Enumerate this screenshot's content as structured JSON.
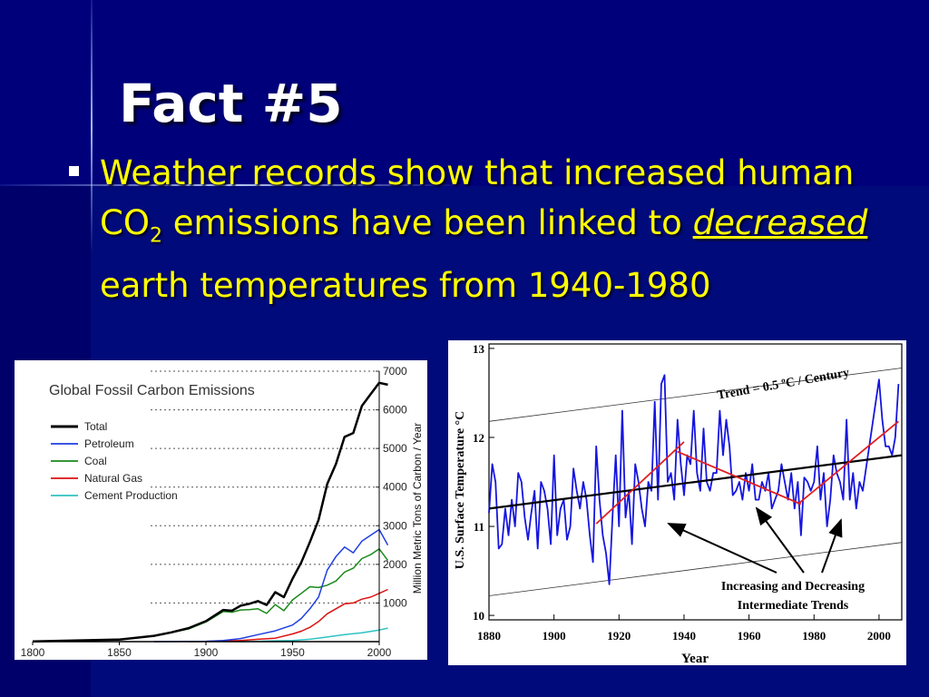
{
  "slide": {
    "title": "Fact #5",
    "bullet": {
      "part1": "Weather records show that increased human CO",
      "subscript": "2",
      "part2": " emissions have been linked to ",
      "emphasis": "decreased",
      "part3": " earth temperatures from 1940-1980"
    }
  },
  "colors": {
    "background": "#000a7a",
    "title": "#ffffff",
    "bullet_text": "#ffff00"
  },
  "chart_data": [
    {
      "type": "line",
      "title": "Global Fossil Carbon Emissions",
      "ylabel": "Million Metric Tons of Carbon / Year",
      "xlabel": "",
      "xlim": [
        1800,
        2000
      ],
      "ylim": [
        0,
        7000
      ],
      "x_ticks": [
        "1800",
        "1850",
        "1900",
        "1950",
        "2000"
      ],
      "y_ticks": [
        "1000",
        "2000",
        "3000",
        "4000",
        "5000",
        "6000",
        "7000"
      ],
      "grid": "horizontal dotted",
      "legend_position": "top-left",
      "series": [
        {
          "name": "Total",
          "color": "#000000",
          "x": [
            1800,
            1850,
            1870,
            1880,
            1890,
            1900,
            1910,
            1915,
            1920,
            1925,
            1930,
            1935,
            1940,
            1945,
            1950,
            1955,
            1960,
            1965,
            1970,
            1975,
            1980,
            1985,
            1990,
            1995,
            2000,
            2005
          ],
          "y": [
            5,
            55,
            150,
            240,
            350,
            530,
            820,
            800,
            930,
            980,
            1050,
            950,
            1280,
            1150,
            1630,
            2050,
            2580,
            3150,
            4080,
            4600,
            5300,
            5400,
            6100,
            6400,
            6700,
            6650
          ]
        },
        {
          "name": "Petroleum",
          "color": "#1f3fe0",
          "x": [
            1870,
            1900,
            1910,
            1920,
            1930,
            1940,
            1950,
            1955,
            1960,
            1965,
            1970,
            1975,
            1980,
            1985,
            1990,
            1995,
            2000,
            2005
          ],
          "y": [
            0,
            10,
            30,
            80,
            180,
            280,
            430,
            600,
            850,
            1150,
            1850,
            2200,
            2450,
            2300,
            2600,
            2750,
            2900,
            2500
          ]
        },
        {
          "name": "Coal",
          "color": "#1a8a1a",
          "x": [
            1800,
            1850,
            1870,
            1890,
            1900,
            1910,
            1915,
            1920,
            1925,
            1930,
            1935,
            1940,
            1945,
            1950,
            1955,
            1960,
            1965,
            1970,
            1975,
            1980,
            1985,
            1990,
            1995,
            2000,
            2005
          ],
          "y": [
            5,
            55,
            145,
            330,
            510,
            780,
            760,
            820,
            830,
            850,
            730,
            960,
            800,
            1080,
            1250,
            1420,
            1400,
            1460,
            1570,
            1800,
            1900,
            2150,
            2250,
            2400,
            2100
          ]
        },
        {
          "name": "Natural Gas",
          "color": "#dd1111",
          "x": [
            1890,
            1900,
            1920,
            1930,
            1940,
            1950,
            1955,
            1960,
            1965,
            1970,
            1975,
            1980,
            1985,
            1990,
            1995,
            2000,
            2005
          ],
          "y": [
            0,
            5,
            30,
            60,
            90,
            200,
            270,
            370,
            520,
            720,
            850,
            980,
            1000,
            1100,
            1150,
            1250,
            1350
          ]
        },
        {
          "name": "Cement Production",
          "color": "#2fc2c2",
          "x": [
            1920,
            1930,
            1940,
            1950,
            1960,
            1970,
            1980,
            1990,
            2000,
            2005
          ],
          "y": [
            0,
            10,
            20,
            30,
            60,
            120,
            180,
            230,
            300,
            350
          ]
        }
      ]
    },
    {
      "type": "line",
      "title": "",
      "xlabel": "Year",
      "ylabel": "U.S. Surface Temperature °C",
      "xlim": [
        1880,
        2007
      ],
      "ylim": [
        9.95,
        13.05
      ],
      "x_ticks": [
        "1880",
        "1900",
        "1920",
        "1940",
        "1960",
        "1980",
        "2000"
      ],
      "y_ticks": [
        "10",
        "11",
        "12",
        "13"
      ],
      "annotations": {
        "trend_label": "Trend = 0.5 ºC / Century",
        "note_line1": "Increasing and Decreasing",
        "note_line2": "Intermediate Trends"
      },
      "series": [
        {
          "name": "",
          "color": "#1515e0",
          "x": [
            1880,
            1881,
            1882,
            1883,
            1884,
            1885,
            1886,
            1887,
            1888,
            1889,
            1890,
            1891,
            1892,
            1893,
            1894,
            1895,
            1896,
            1897,
            1898,
            1899,
            1900,
            1901,
            1902,
            1903,
            1904,
            1905,
            1906,
            1907,
            1908,
            1909,
            1910,
            1911,
            1912,
            1913,
            1914,
            1915,
            1916,
            1917,
            1918,
            1919,
            1920,
            1921,
            1922,
            1923,
            1924,
            1925,
            1926,
            1927,
            1928,
            1929,
            1930,
            1931,
            1932,
            1933,
            1934,
            1935,
            1936,
            1937,
            1938,
            1939,
            1940,
            1941,
            1942,
            1943,
            1944,
            1945,
            1946,
            1947,
            1948,
            1949,
            1950,
            1951,
            1952,
            1953,
            1954,
            1955,
            1956,
            1957,
            1958,
            1959,
            1960,
            1961,
            1962,
            1963,
            1964,
            1965,
            1966,
            1967,
            1968,
            1969,
            1970,
            1971,
            1972,
            1973,
            1974,
            1975,
            1976,
            1977,
            1978,
            1979,
            1980,
            1981,
            1982,
            1983,
            1984,
            1985,
            1986,
            1987,
            1988,
            1989,
            1990,
            1991,
            1992,
            1993,
            1994,
            1995,
            2000,
            2001,
            2002,
            2003,
            2004,
            2005,
            2006
          ],
          "y": [
            11.15,
            11.7,
            11.5,
            10.75,
            10.8,
            11.2,
            10.9,
            11.3,
            11.0,
            11.6,
            11.5,
            11.1,
            10.85,
            11.15,
            11.4,
            10.75,
            11.5,
            11.4,
            11.2,
            10.8,
            11.8,
            10.9,
            11.2,
            11.3,
            10.85,
            11.0,
            11.65,
            11.4,
            11.2,
            11.5,
            11.3,
            10.9,
            10.6,
            11.9,
            11.3,
            10.9,
            10.7,
            10.35,
            11.1,
            11.8,
            11.0,
            12.3,
            11.1,
            11.4,
            10.8,
            11.7,
            11.5,
            11.2,
            11.0,
            11.5,
            11.4,
            12.4,
            11.3,
            12.6,
            12.7,
            11.5,
            11.6,
            11.3,
            12.2,
            11.7,
            11.35,
            11.8,
            11.7,
            12.3,
            11.6,
            11.4,
            12.1,
            11.5,
            11.4,
            11.6,
            11.6,
            12.3,
            11.8,
            12.2,
            11.9,
            11.35,
            11.4,
            11.5,
            11.3,
            11.6,
            11.4,
            11.7,
            11.3,
            11.3,
            11.5,
            11.4,
            11.6,
            11.2,
            11.3,
            11.4,
            11.7,
            11.5,
            11.3,
            11.6,
            11.2,
            11.5,
            10.9,
            11.55,
            11.5,
            11.4,
            11.5,
            11.9,
            11.3,
            11.6,
            11.0,
            11.3,
            11.8,
            11.6,
            11.5,
            11.3,
            12.2,
            11.3,
            11.6,
            11.2,
            11.5,
            11.4,
            12.65,
            12.2,
            11.9,
            11.9,
            11.8,
            12.0,
            12.6
          ]
        },
        {
          "name": "",
          "color": "#000000",
          "x": [
            1880,
            2007
          ],
          "y": [
            11.2,
            11.8
          ]
        },
        {
          "name": "",
          "color": "#e02020",
          "x": [
            1913,
            1940
          ],
          "y": [
            11.03,
            11.95
          ]
        },
        {
          "name": "",
          "color": "#e02020",
          "x": [
            1938,
            1976
          ],
          "y": [
            11.84,
            11.25
          ]
        },
        {
          "name": "",
          "color": "#e02020",
          "x": [
            1975,
            2006
          ],
          "y": [
            11.25,
            12.18
          ]
        }
      ]
    }
  ]
}
